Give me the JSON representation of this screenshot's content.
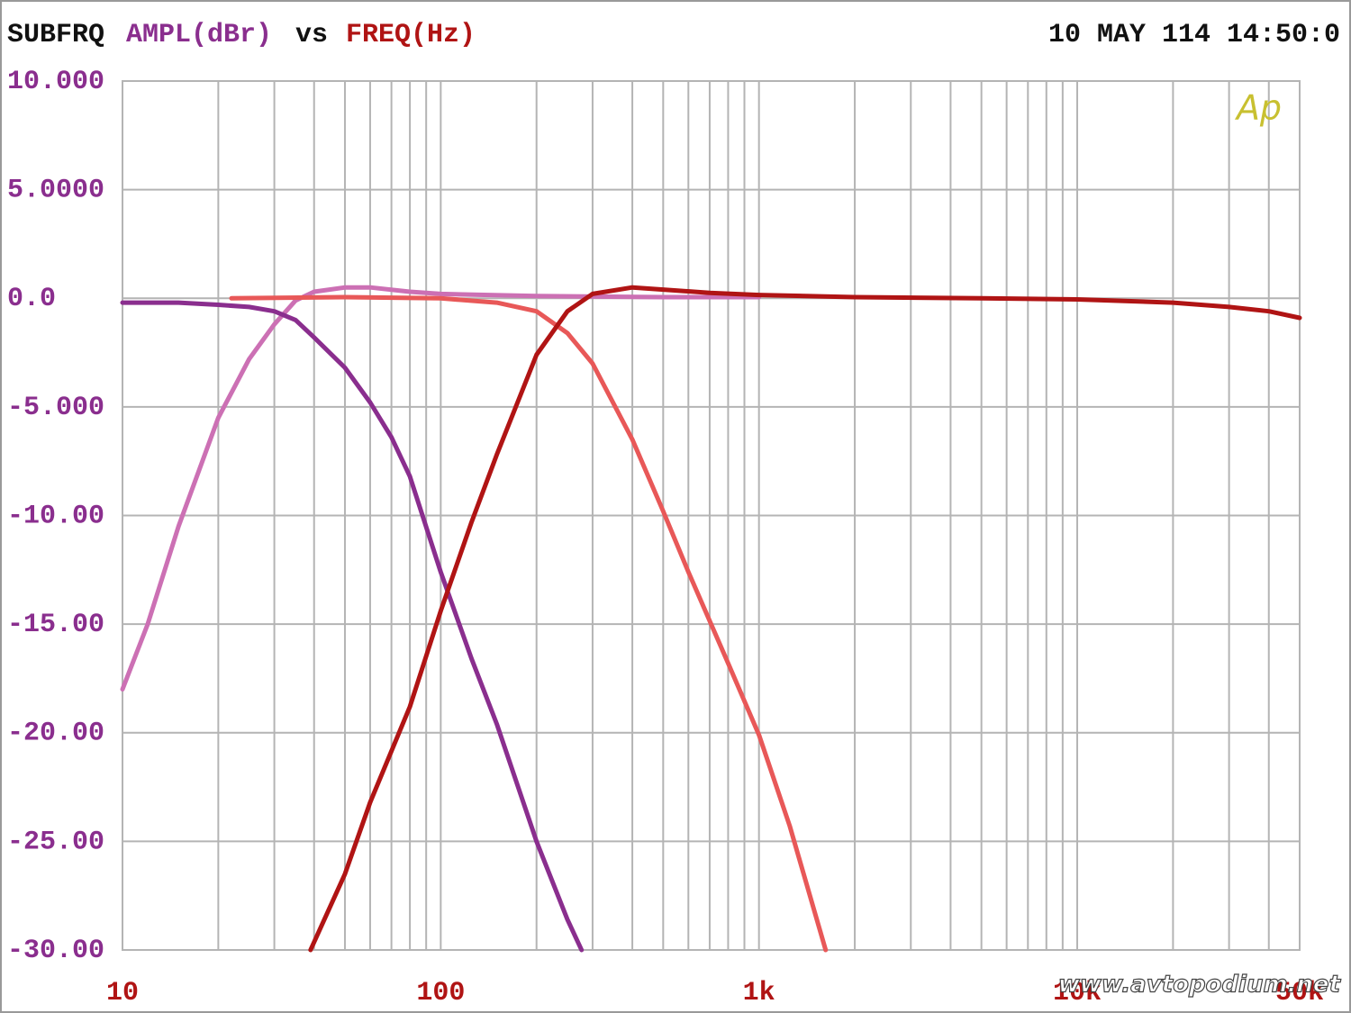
{
  "chart_data": {
    "type": "line",
    "header": {
      "source": "SUBFRQ",
      "y_label": "AMPL(dBr)",
      "vs": "vs",
      "x_label": "FREQ(Hz)",
      "timestamp": "10 MAY 114 14:50:0"
    },
    "logo": "Ap",
    "watermark": "www.avtopodium.net",
    "xscale": "log",
    "xlim": [
      10,
      50000
    ],
    "ylim": [
      -30,
      10
    ],
    "xticks": [
      10,
      100,
      {
        "value": 1000,
        "label": "1k"
      },
      {
        "value": 10000,
        "label": "10k"
      },
      {
        "value": 50000,
        "label": "50k"
      }
    ],
    "x_gridlines": [
      20,
      30,
      40,
      50,
      60,
      70,
      80,
      90,
      200,
      300,
      400,
      500,
      600,
      700,
      800,
      900,
      2000,
      3000,
      4000,
      5000,
      6000,
      7000,
      8000,
      9000,
      20000,
      30000,
      40000
    ],
    "yticks": [
      {
        "value": 10,
        "label": "10.000"
      },
      {
        "value": 5,
        "label": "5.0000"
      },
      {
        "value": 0,
        "label": "0.0"
      },
      {
        "value": -5,
        "label": "-5.000"
      },
      {
        "value": -10,
        "label": "-10.00"
      },
      {
        "value": -15,
        "label": "-15.00"
      },
      {
        "value": -20,
        "label": "-20.00"
      },
      {
        "value": -25,
        "label": "-25.00"
      },
      {
        "value": -30,
        "label": "-30.00"
      }
    ],
    "grid": true,
    "series": [
      {
        "color": "#cc70b4",
        "x": [
          10,
          12,
          15,
          20,
          25,
          30,
          35,
          40,
          50,
          60,
          80,
          100,
          200,
          500,
          1000
        ],
        "values": [
          -18,
          -15,
          -10.5,
          -5.5,
          -2.8,
          -1.2,
          -0.1,
          0.3,
          0.5,
          0.5,
          0.3,
          0.2,
          0.1,
          0.05,
          0.05
        ]
      },
      {
        "color": "#8a2e8e",
        "x": [
          10,
          15,
          20,
          25,
          30,
          35,
          40,
          50,
          60,
          70,
          80,
          100,
          125,
          150,
          200,
          250,
          277
        ],
        "values": [
          -0.2,
          -0.2,
          -0.3,
          -0.4,
          -0.6,
          -1.0,
          -1.8,
          -3.2,
          -4.8,
          -6.4,
          -8.2,
          -12.6,
          -16.6,
          -19.6,
          -25.0,
          -28.6,
          -30
        ]
      },
      {
        "color": "#e85858",
        "x": [
          22,
          50,
          100,
          150,
          200,
          250,
          300,
          400,
          500,
          600,
          800,
          1000,
          1250,
          1620
        ],
        "values": [
          0,
          0.05,
          0,
          -0.2,
          -0.6,
          -1.6,
          -3.0,
          -6.5,
          -9.8,
          -12.6,
          -16.8,
          -20.1,
          -24.3,
          -30
        ]
      },
      {
        "color": "#b01414",
        "x": [
          39,
          50,
          60,
          80,
          100,
          125,
          150,
          200,
          250,
          300,
          400,
          500,
          700,
          1000,
          2000,
          5000,
          10000,
          20000,
          30000,
          40000,
          50000
        ],
        "values": [
          -30,
          -26.5,
          -23.2,
          -18.8,
          -14.4,
          -10.3,
          -7.2,
          -2.6,
          -0.6,
          0.2,
          0.5,
          0.4,
          0.25,
          0.15,
          0.05,
          0,
          -0.05,
          -0.2,
          -0.4,
          -0.6,
          -0.9
        ]
      }
    ]
  }
}
